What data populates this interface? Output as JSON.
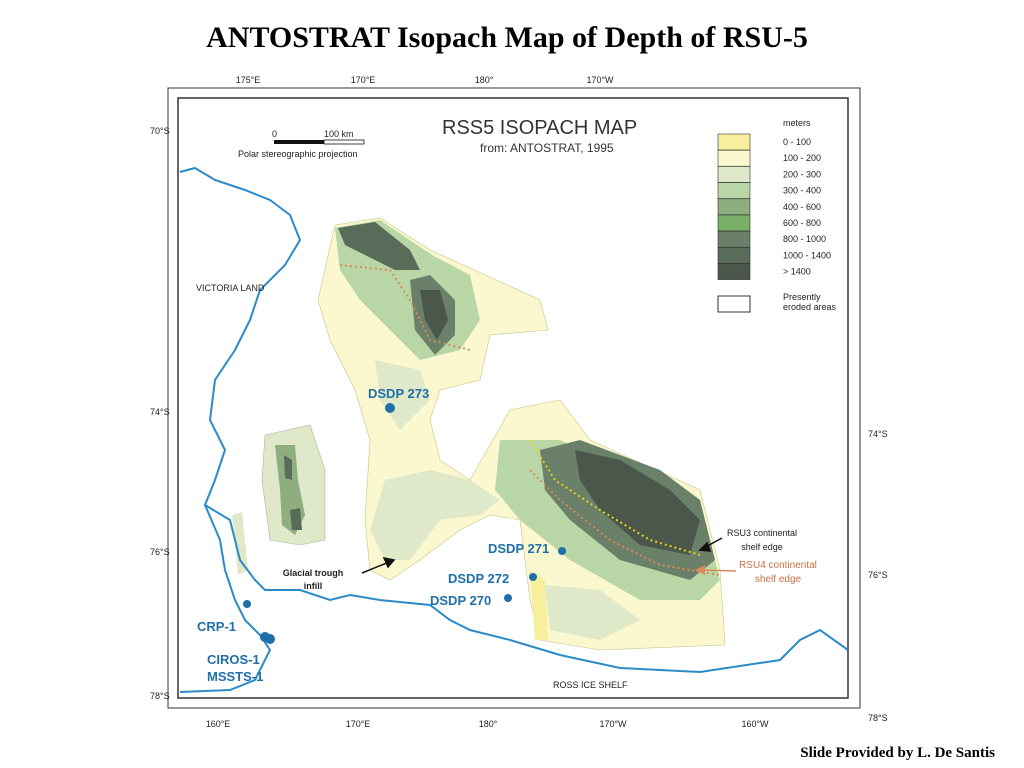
{
  "title": "ANTOSTRAT Isopach Map of Depth of RSU-5",
  "footer": "Slide Provided by L. De Santis",
  "map": {
    "title": "RSS5  ISOPACH  MAP",
    "subtitle": "from: ANTOSTRAT, 1995",
    "scale": {
      "zero": "0",
      "length": "100 km",
      "projection": "Polar stereographic projection"
    },
    "axes": {
      "top": [
        "175°E",
        "170°E",
        "180°",
        "170°W"
      ],
      "bottom": [
        "160°E",
        "170°E",
        "180°",
        "170°W",
        "160°W"
      ],
      "left": [
        "70°S",
        "74°S",
        "76°S",
        "78°S"
      ],
      "right": [
        "74°S",
        "76°S",
        "78°S"
      ]
    },
    "legend": {
      "title": "meters",
      "items": [
        {
          "label": "0 - 100",
          "color": "#f7ef9c"
        },
        {
          "label": "100 - 200",
          "color": "#fbf8cf"
        },
        {
          "label": "200 - 300",
          "color": "#dfe9c9"
        },
        {
          "label": "300 - 400",
          "color": "#b9d6a6"
        },
        {
          "label": "400 - 600",
          "color": "#8fae80"
        },
        {
          "label": "600 - 800",
          "color": "#79b068"
        },
        {
          "label": "800 - 1000",
          "color": "#6b8068"
        },
        {
          "label": "1000 - 1400",
          "color": "#596b59"
        },
        {
          "label": "> 1400",
          "color": "#4a574a"
        }
      ],
      "eroded": [
        "Presently",
        "eroded areas"
      ]
    },
    "labels": {
      "region": "VICTORIA LAND",
      "dsdp273": "DSDP 273",
      "dsdp271": "DSDP 271",
      "dsdp272": "DSDP 272",
      "dsdp270": "DSDP 270",
      "crp1": "CRP-1",
      "ciros1": "CIROS-1",
      "mssts1": "MSSTS-1",
      "trough": [
        "Glacial trough",
        "infill"
      ],
      "rsu3": [
        "RSU3 continental",
        "shelf edge"
      ],
      "rsu4": [
        "RSU4 continental",
        "shelf edge"
      ],
      "iceshelf": "ROSS ICE SHELF"
    }
  }
}
